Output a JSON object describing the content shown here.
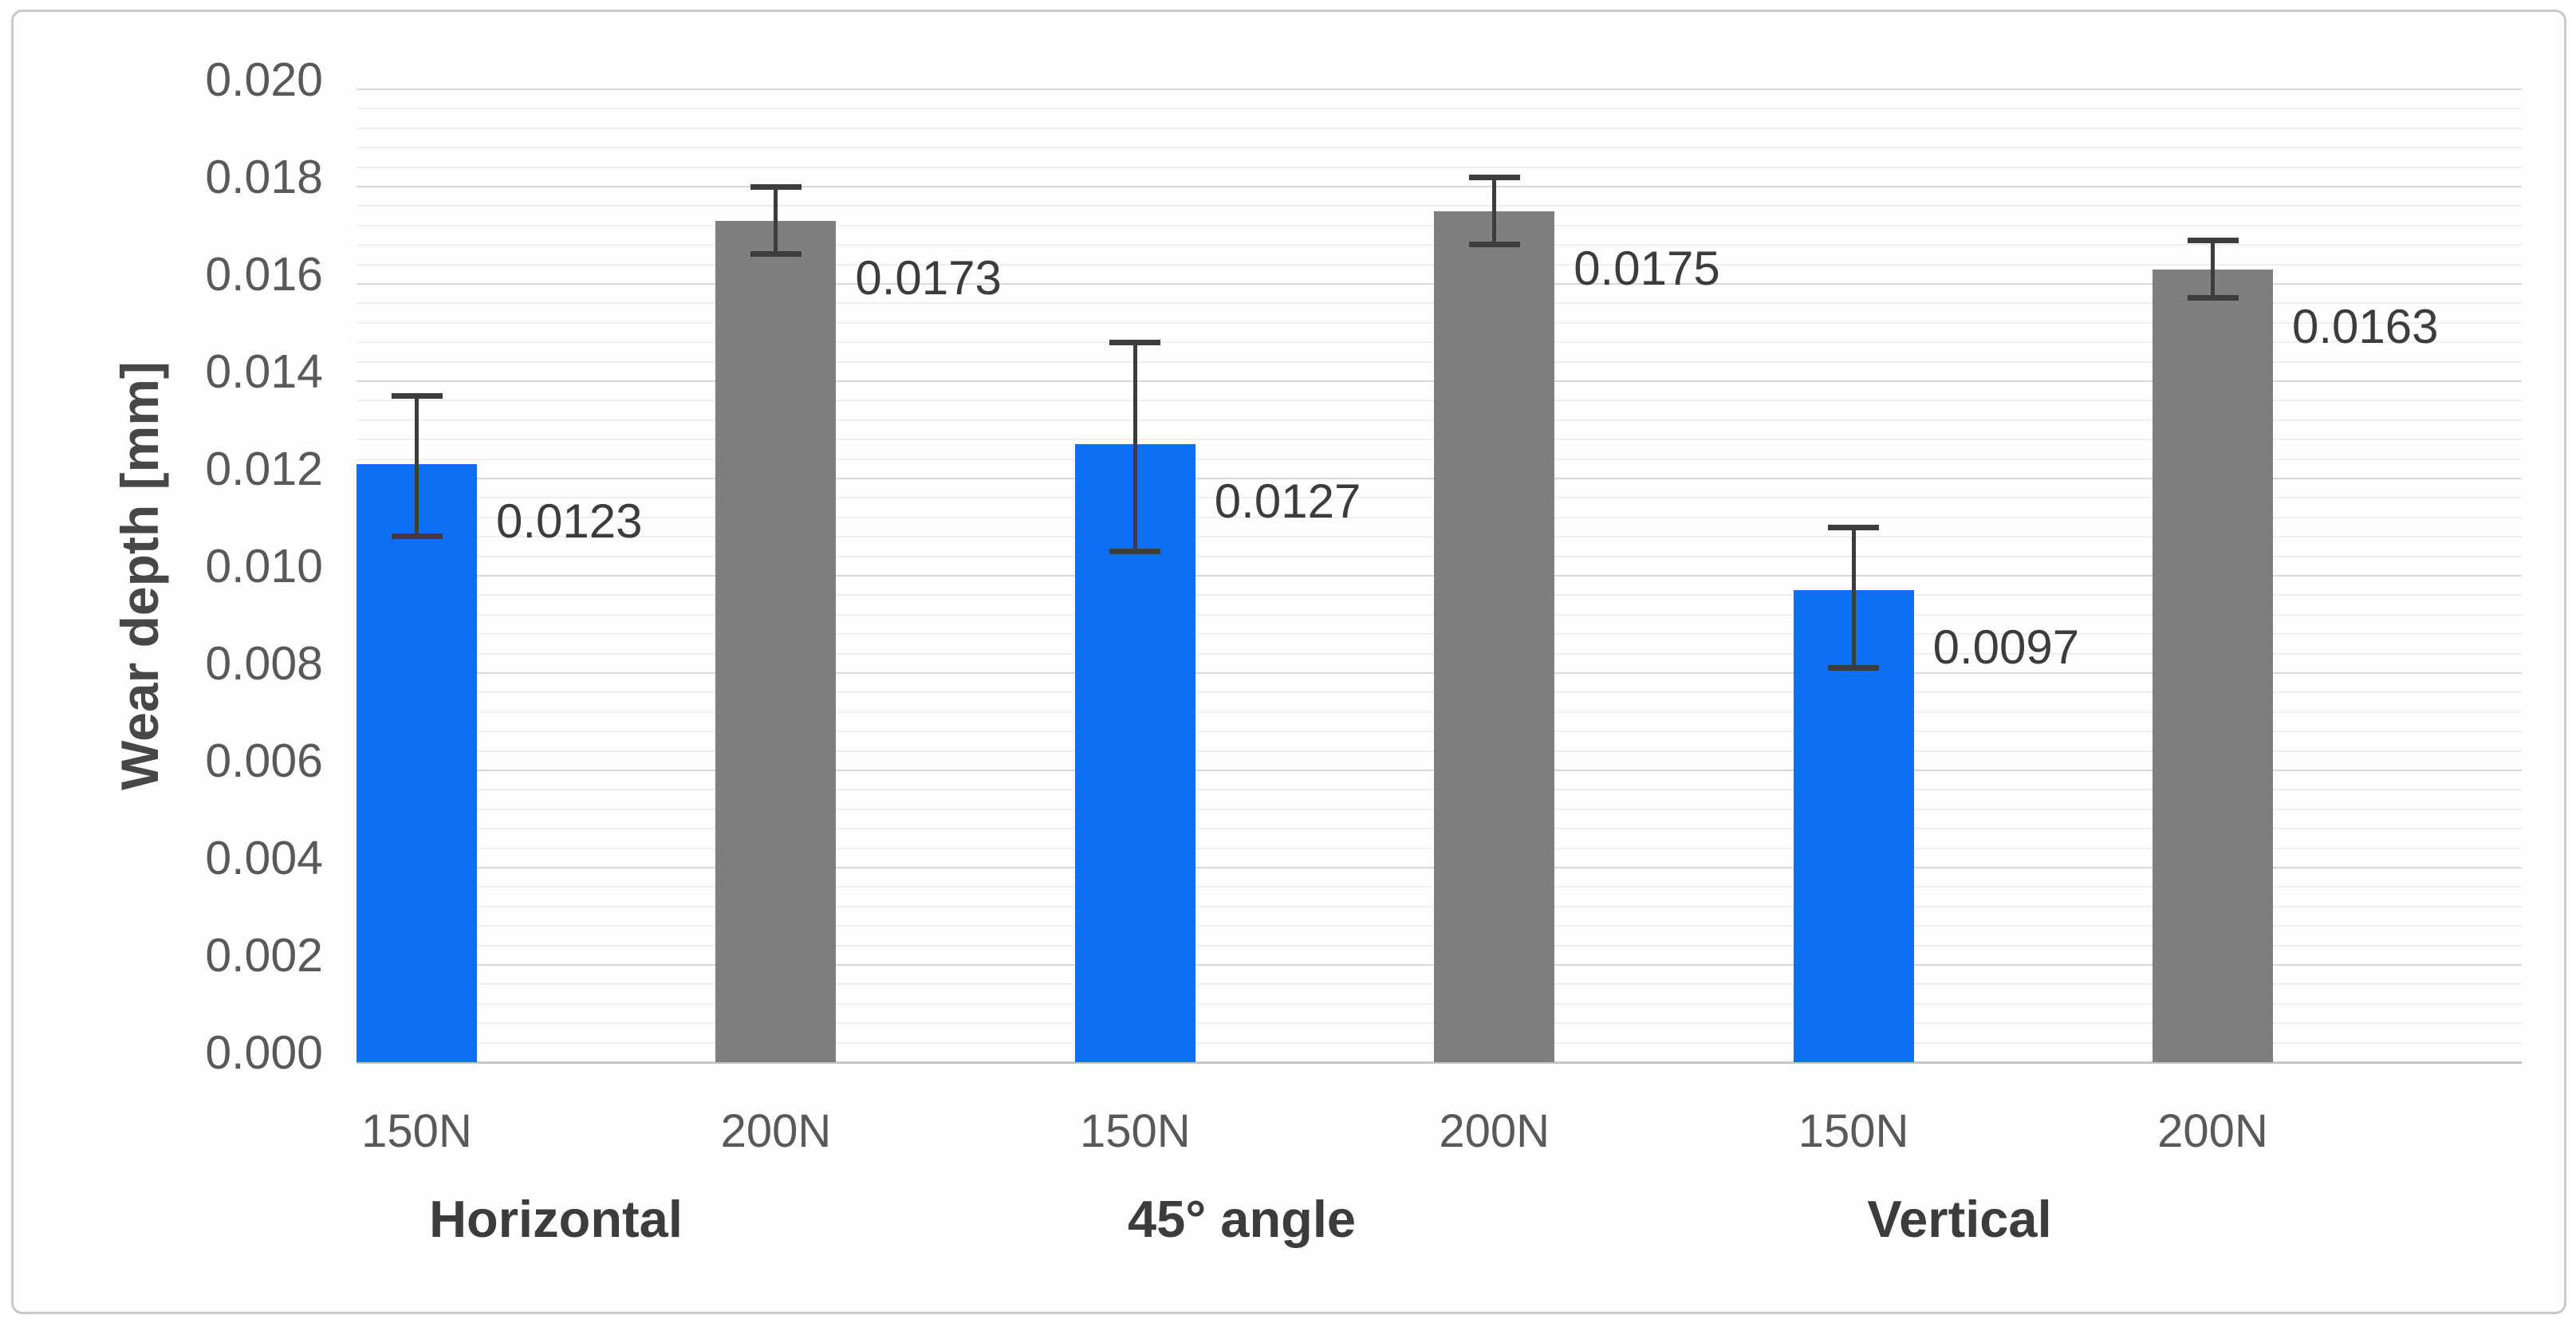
{
  "chart_data": {
    "type": "bar",
    "title": "",
    "xlabel": "",
    "ylabel": "Wear depth [mm]",
    "ylim": [
      0,
      0.02
    ],
    "y_major_step": 0.002,
    "y_minor_step": 0.0004,
    "y_tick_labels": [
      "0.000",
      "0.002",
      "0.004",
      "0.006",
      "0.008",
      "0.010",
      "0.012",
      "0.014",
      "0.016",
      "0.018",
      "0.020"
    ],
    "grid": "on",
    "legend_position": "none",
    "error_bars": "on",
    "categories": [
      "Horizontal",
      "45° angle",
      "Vertical"
    ],
    "groups": [
      {
        "label": "Horizontal",
        "bars": [
          {
            "series": "150N",
            "tick": "150N",
            "value": 0.0123,
            "data_label": "0.0123",
            "err_plus": 0.0014,
            "err_minus": 0.0015
          },
          {
            "series": "200N",
            "tick": "200N",
            "value": 0.0173,
            "data_label": "0.0173",
            "err_plus": 0.0007,
            "err_minus": 0.0007
          }
        ]
      },
      {
        "label": "45° angle",
        "bars": [
          {
            "series": "150N",
            "tick": "150N",
            "value": 0.0127,
            "data_label": "0.0127",
            "err_plus": 0.0021,
            "err_minus": 0.0022
          },
          {
            "series": "200N",
            "tick": "200N",
            "value": 0.0175,
            "data_label": "0.0175",
            "err_plus": 0.0007,
            "err_minus": 0.0007
          }
        ]
      },
      {
        "label": "Vertical",
        "bars": [
          {
            "series": "150N",
            "tick": "150N",
            "value": 0.0097,
            "data_label": "0.0097",
            "err_plus": 0.0013,
            "err_minus": 0.0016
          },
          {
            "series": "200N",
            "tick": "200N",
            "value": 0.0163,
            "data_label": "0.0163",
            "err_plus": 0.0006,
            "err_minus": 0.0006
          }
        ]
      }
    ],
    "series_colors": {
      "150N": "#0e6ff0",
      "200N": "#7f7f7f"
    },
    "colors": {
      "error_bar": "#3d3d3d",
      "grid_major": "#d9d9d9",
      "grid_minor": "#f0f0f0",
      "axis_baseline": "#c7c7c7",
      "tick_text": "#595959",
      "label_text": "#3c3c3c",
      "card_border": "#c9c9c9",
      "background": "#ffffff"
    }
  }
}
